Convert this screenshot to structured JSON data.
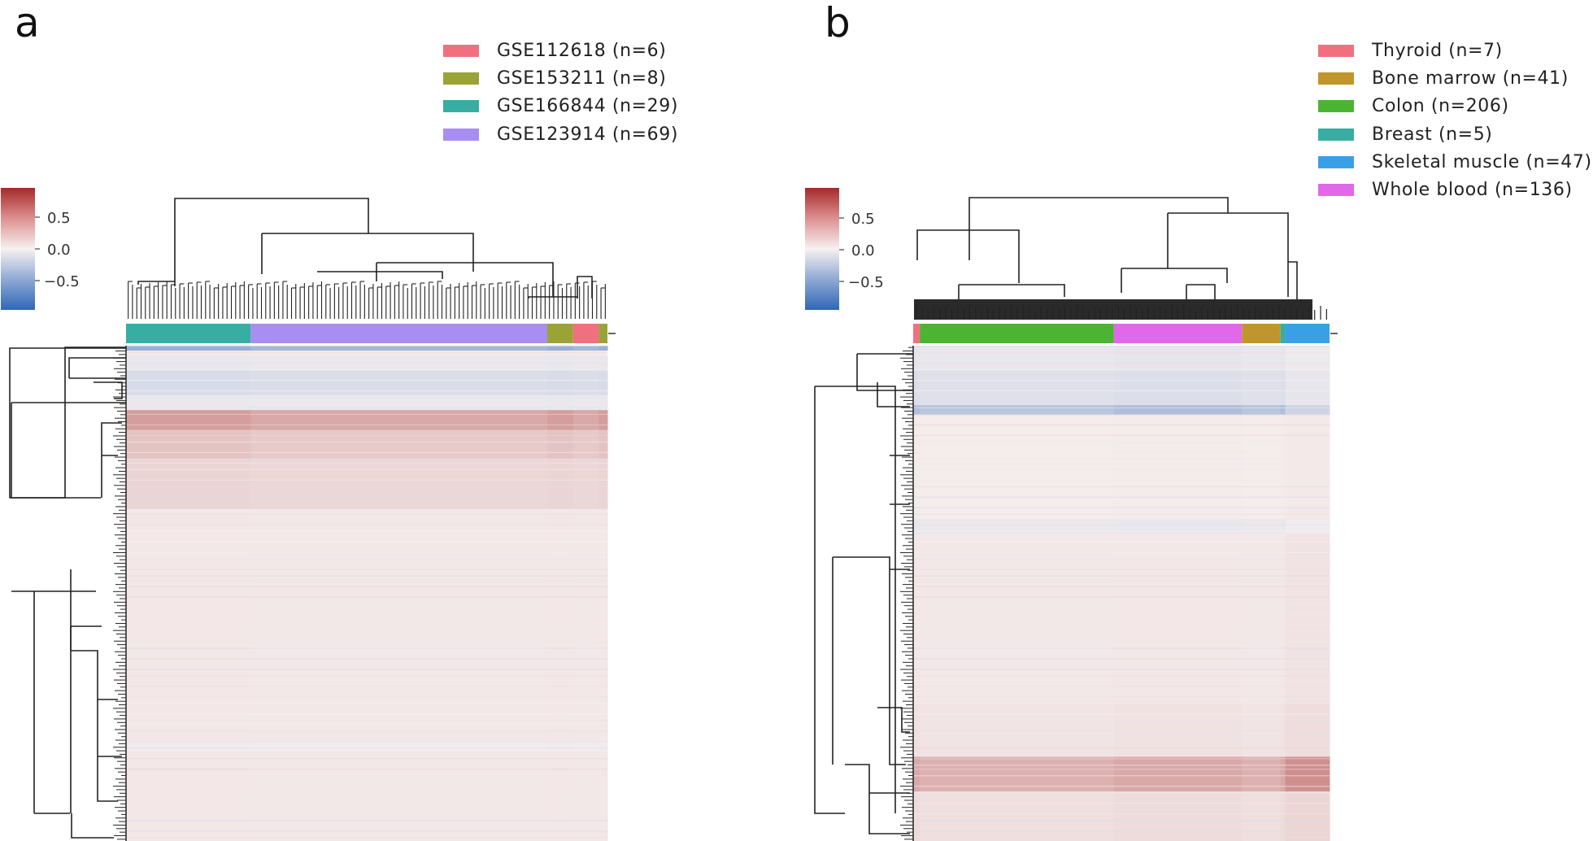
{
  "chart_data": [
    {
      "type": "heatmap",
      "panel_label": "a",
      "colorbar": {
        "ticks": [
          "0.5",
          "0.0",
          "−0.5"
        ],
        "vmin": -1,
        "vmax": 1,
        "colormap": "diverging blue-white-red"
      },
      "legend": [
        {
          "label": "GSE112618 (n=6)",
          "color": "#f0707f"
        },
        {
          "label": "GSE153211 (n=8)",
          "color": "#9aa336"
        },
        {
          "label": "GSE166844 (n=29)",
          "color": "#38ada1"
        },
        {
          "label": "GSE123914 (n=69)",
          "color": "#a88ef0"
        }
      ],
      "column_groups": [
        {
          "label": "GSE166844 (n=29)",
          "n": 29,
          "color": "#38ada1"
        },
        {
          "label": "GSE123914 (n=69)",
          "n": 69,
          "color": "#a88ef0"
        },
        {
          "label": "GSE153211 (n=8)",
          "n": 6,
          "color": "#9aa336"
        },
        {
          "label": "GSE112618 (n=6)",
          "n": 6,
          "color": "#f0707f"
        },
        {
          "label": "GSE153211 (n=8)",
          "n": 2,
          "color": "#9aa336"
        }
      ],
      "row_bands": [
        {
          "from": 0.0,
          "to": 0.01,
          "value": -0.45
        },
        {
          "from": 0.02,
          "to": 0.05,
          "value": -0.07
        },
        {
          "from": 0.05,
          "to": 0.1,
          "value": -0.15
        },
        {
          "from": 0.1,
          "to": 0.13,
          "value": -0.06
        },
        {
          "from": 0.13,
          "to": 0.17,
          "value": 0.4
        },
        {
          "from": 0.17,
          "to": 0.23,
          "value": 0.22
        },
        {
          "from": 0.23,
          "to": 0.33,
          "value": 0.14
        },
        {
          "from": 0.33,
          "to": 0.8,
          "value": 0.05
        },
        {
          "from": 0.8,
          "to": 0.82,
          "value": -0.04
        },
        {
          "from": 0.82,
          "to": 1.0,
          "value": 0.05
        }
      ]
    },
    {
      "type": "heatmap",
      "panel_label": "b",
      "colorbar": {
        "ticks": [
          "0.5",
          "0.0",
          "−0.5"
        ],
        "vmin": -1,
        "vmax": 1,
        "colormap": "diverging blue-white-red"
      },
      "legend": [
        {
          "label": "Thyroid (n=7)",
          "color": "#f0707f"
        },
        {
          "label": "Bone marrow (n=41)",
          "color": "#c0952e"
        },
        {
          "label": "Colon (n=206)",
          "color": "#4db433"
        },
        {
          "label": "Breast (n=5)",
          "color": "#38ada1"
        },
        {
          "label": "Skeletal muscle (n=47)",
          "color": "#3aa0e6"
        },
        {
          "label": "Whole blood (n=136)",
          "color": "#e168e8"
        }
      ],
      "column_groups": [
        {
          "label": "Thyroid (n=7)",
          "n": 7,
          "color": "#f0707f"
        },
        {
          "label": "Colon (n=206)",
          "n": 206,
          "color": "#4db433"
        },
        {
          "label": "Whole blood (n=136)",
          "n": 136,
          "color": "#e168e8"
        },
        {
          "label": "Bone marrow (n=41)",
          "n": 41,
          "color": "#c0952e"
        },
        {
          "label": "Breast (n=5)",
          "n": 5,
          "color": "#38ada1"
        },
        {
          "label": "Skeletal muscle (n=47)",
          "n": 47,
          "color": "#3aa0e6"
        }
      ],
      "row_bands": [
        {
          "from": 0.0,
          "to": 0.05,
          "value": -0.08
        },
        {
          "from": 0.05,
          "to": 0.12,
          "value": -0.13
        },
        {
          "from": 0.12,
          "to": 0.14,
          "value": -0.35
        },
        {
          "from": 0.14,
          "to": 0.35,
          "value": 0.03
        },
        {
          "from": 0.35,
          "to": 0.38,
          "value": -0.07
        },
        {
          "from": 0.38,
          "to": 0.72,
          "value": 0.05
        },
        {
          "from": 0.72,
          "to": 0.83,
          "value": 0.07
        },
        {
          "from": 0.83,
          "to": 0.9,
          "value": 0.35
        },
        {
          "from": 0.9,
          "to": 1.0,
          "value": 0.1
        }
      ]
    }
  ]
}
